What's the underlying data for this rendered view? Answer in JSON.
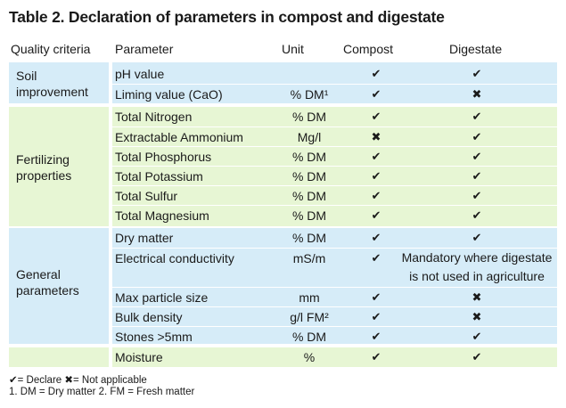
{
  "title": "Table 2. Declaration of parameters in compost and digestate",
  "headers": {
    "quality": "Quality criteria",
    "parameter": "Parameter",
    "unit": "Unit",
    "compost": "Compost",
    "digestate": "Digestate"
  },
  "symbols": {
    "check": "✔",
    "cross": "✖"
  },
  "groups": {
    "soil": {
      "label": "Soil\nimprovement",
      "rows": [
        {
          "parameter": "pH value",
          "unit": "",
          "compost": "✔",
          "digestate": "✔"
        },
        {
          "parameter": "Liming value (CaO)",
          "unit": "% DM¹",
          "compost": "✔",
          "digestate": "✖"
        }
      ]
    },
    "fert": {
      "label": "Fertilizing\nproperties",
      "rows": [
        {
          "parameter": "Total Nitrogen",
          "unit": "% DM",
          "compost": "✔",
          "digestate": "✔"
        },
        {
          "parameter": "Extractable Ammonium",
          "unit": "Mg/l",
          "compost": "✖",
          "digestate": "✔"
        },
        {
          "parameter": "Total Phosphorus",
          "unit": "% DM",
          "compost": "✔",
          "digestate": "✔"
        },
        {
          "parameter": "Total Potassium",
          "unit": "% DM",
          "compost": "✔",
          "digestate": "✔"
        },
        {
          "parameter": "Total Sulfur",
          "unit": "% DM",
          "compost": "✔",
          "digestate": "✔"
        },
        {
          "parameter": "Total Magnesium",
          "unit": "% DM",
          "compost": "✔",
          "digestate": "✔"
        }
      ]
    },
    "gen": {
      "label": "General\nparameters",
      "rows": [
        {
          "parameter": "Dry matter",
          "unit": "% DM",
          "compost": "✔",
          "digestate": "✔"
        },
        {
          "parameter": "Electrical conductivity",
          "unit": "mS/m",
          "compost": "✔",
          "digestate": "Mandatory where digestate\nis not used in agriculture"
        },
        {
          "parameter": "Max particle size",
          "unit": "mm",
          "compost": "✔",
          "digestate": "✖"
        },
        {
          "parameter": "Bulk density",
          "unit": "g/l FM²",
          "compost": "✔",
          "digestate": "✖"
        },
        {
          "parameter": "Stones >5mm",
          "unit": "% DM",
          "compost": "✔",
          "digestate": "✔"
        }
      ]
    },
    "moist": {
      "label": "",
      "rows": [
        {
          "parameter": "Moisture",
          "unit": "%",
          "compost": "✔",
          "digestate": "✔"
        }
      ]
    }
  },
  "footnotes": {
    "legend": "✔= Declare   ✖= Not applicable",
    "notes": "1. DM = Dry matter   2. FM = Fresh matter"
  }
}
